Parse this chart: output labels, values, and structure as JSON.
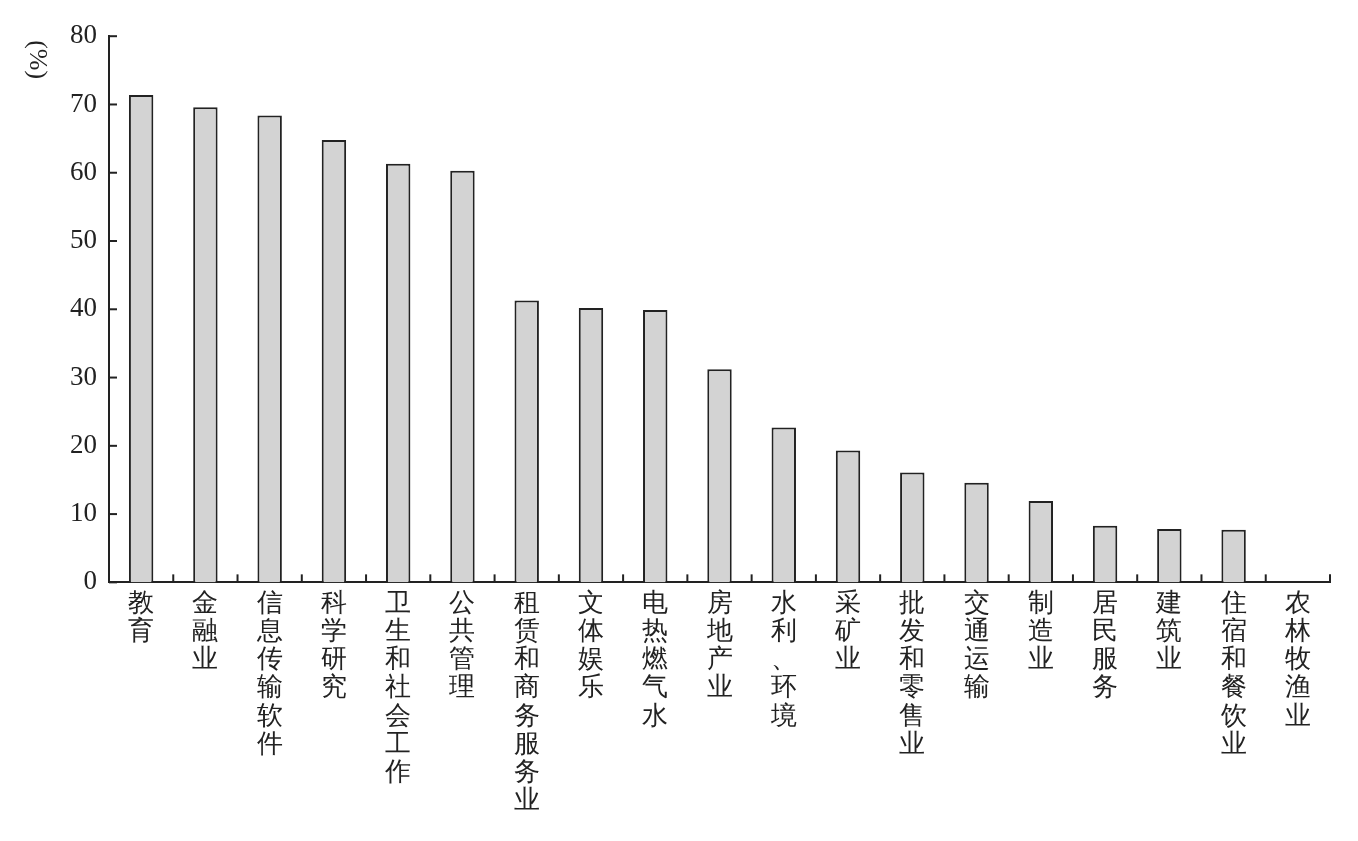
{
  "chart_data": {
    "type": "bar",
    "ylabel": "(%)",
    "categories": [
      "教育",
      "金融业",
      "信息传输软件",
      "科学研究",
      "卫生和社会工作",
      "公共管理",
      "租赁和商务服务业",
      "文体娱乐",
      "电热燃气水",
      "房地产业",
      "水利、环境",
      "采矿业",
      "批发和零售业",
      "交通运输",
      "制造业",
      "居民服务",
      "建筑业",
      "住宿和餐饮业",
      "农林牧渔业"
    ],
    "values": [
      71.4,
      69.6,
      68.4,
      64.8,
      61.3,
      60.3,
      41.3,
      40.2,
      39.9,
      31.2,
      22.7,
      19.3,
      16.1,
      14.6,
      11.9,
      8.3,
      7.8,
      7.7,
      0
    ],
    "color": "#d3d3d3",
    "ylim": [
      0,
      80
    ],
    "yticks": [
      0,
      10,
      20,
      30,
      40,
      50,
      60,
      70,
      80
    ],
    "grid": false,
    "legend": false
  }
}
